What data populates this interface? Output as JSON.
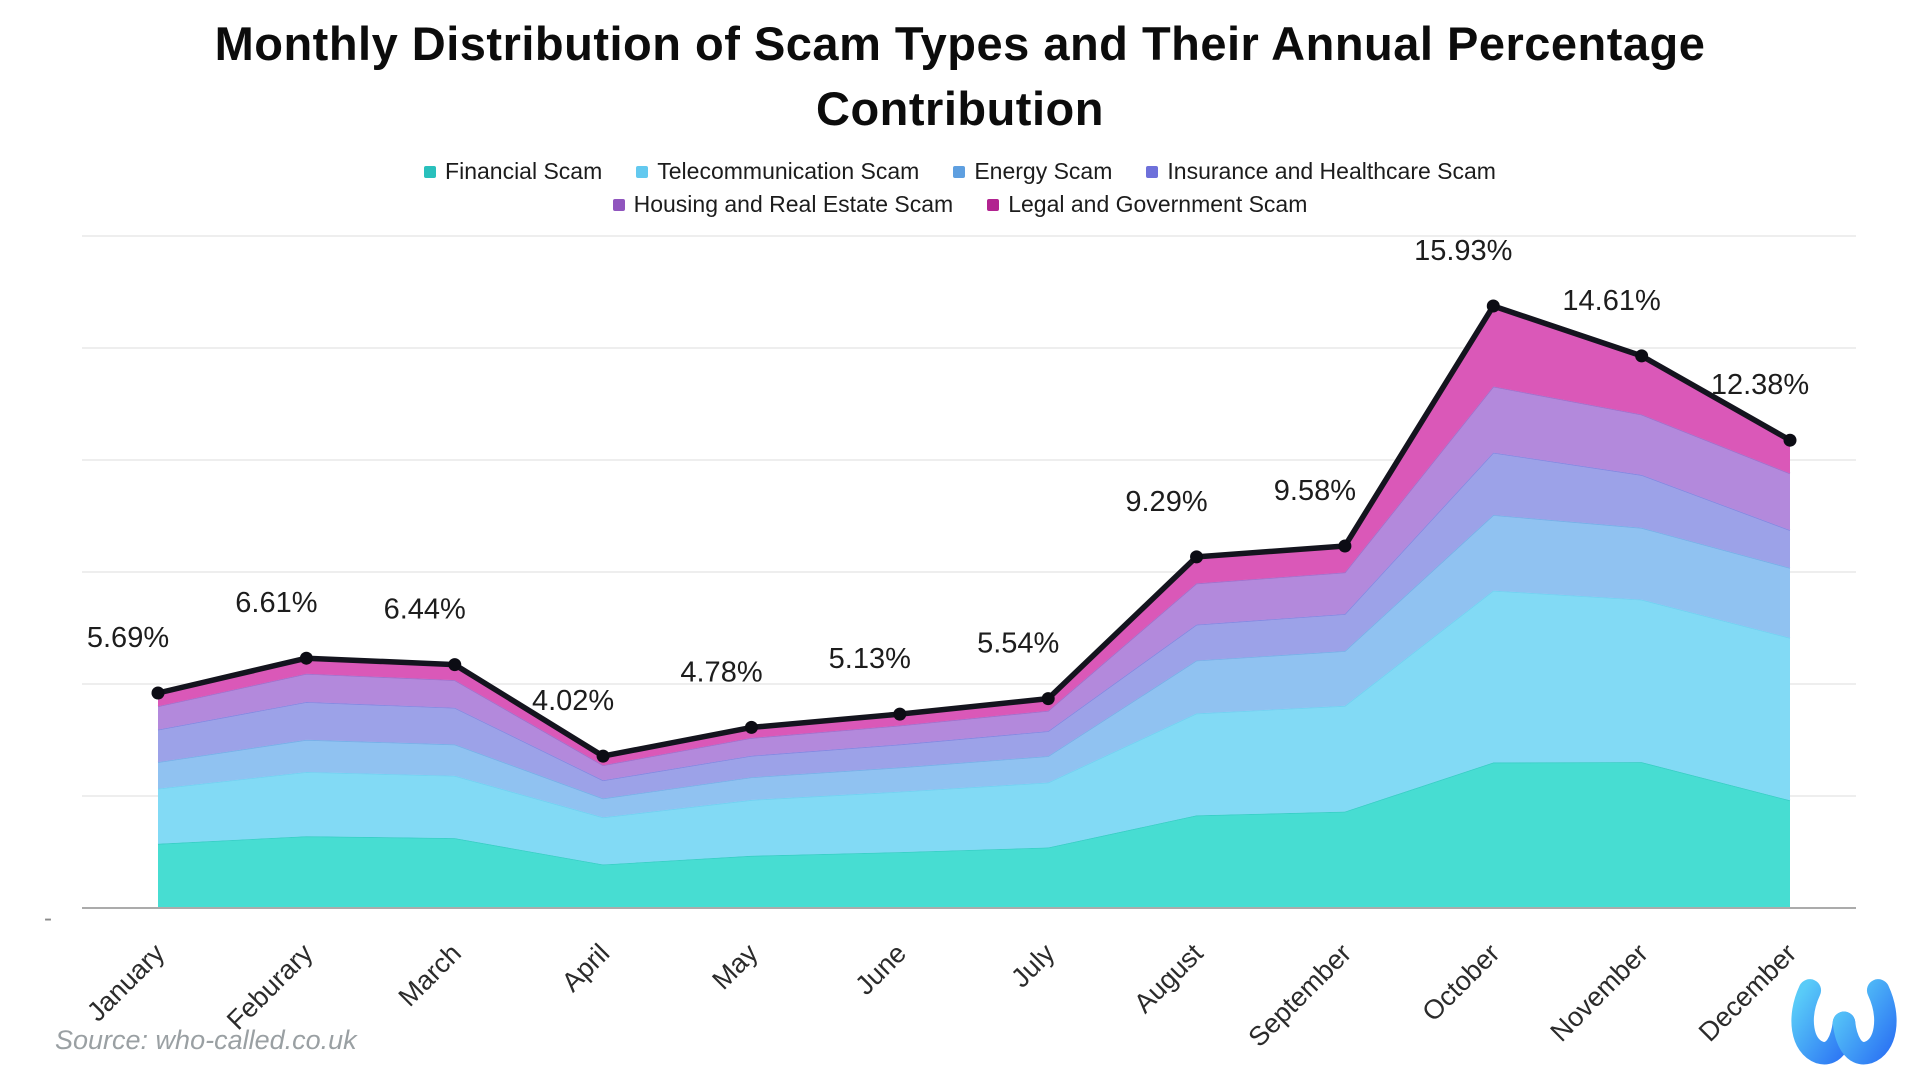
{
  "title": {
    "line1": "Monthly Distribution of Scam Types and Their Annual Percentage",
    "line2": "Contribution"
  },
  "source": "Source: who-called.co.uk",
  "y_axis_tick_dash": "-",
  "logo": {
    "label": "who-called logo",
    "gradient_start": "#56C9F8",
    "gradient_end": "#2E78F4"
  },
  "chart_data": {
    "type": "area",
    "stacked": true,
    "title": "Monthly Distribution of Scam Types and Their Annual Percentage Contribution",
    "categories": [
      "January",
      "Feburary",
      "March",
      "April",
      "May",
      "June",
      "July",
      "August",
      "September",
      "October",
      "November",
      "December"
    ],
    "series": [
      {
        "id": "financial-scam",
        "name": "Financial Scam",
        "swatch": "#29C0BC",
        "fill": "#47DDD2",
        "values": [
          1.7,
          1.9,
          1.85,
          1.15,
          1.38,
          1.48,
          1.6,
          2.45,
          2.55,
          3.85,
          3.86,
          2.85
        ]
      },
      {
        "id": "telecommunication-scam",
        "name": "Telecommunication Scam",
        "swatch": "#63C9EF",
        "fill": "#82DAF5",
        "values": [
          1.46,
          1.7,
          1.65,
          1.25,
          1.48,
          1.6,
          1.72,
          2.7,
          2.8,
          4.55,
          4.3,
          4.3
        ]
      },
      {
        "id": "energy-scam",
        "name": "Energy Scam",
        "swatch": "#5E9FE0",
        "fill": "#90C2F1",
        "values": [
          0.7,
          0.85,
          0.83,
          0.5,
          0.6,
          0.64,
          0.7,
          1.4,
          1.45,
          2.0,
          1.9,
          1.85
        ]
      },
      {
        "id": "insurance-and-healthcare-scam",
        "name": "Insurance and Healthcare Scam",
        "swatch": "#6E70DA",
        "fill": "#9CA2E8",
        "values": [
          0.86,
          1.0,
          0.97,
          0.48,
          0.57,
          0.61,
          0.66,
          0.95,
          0.98,
          1.65,
          1.4,
          1.0
        ]
      },
      {
        "id": "housing-and-real-estate-scam",
        "name": "Housing and Real Estate Scam",
        "swatch": "#9055BE",
        "fill": "#B389DC",
        "values": [
          0.62,
          0.75,
          0.73,
          0.4,
          0.47,
          0.5,
          0.54,
          1.09,
          1.1,
          1.75,
          1.6,
          1.5
        ]
      },
      {
        "id": "legal-and-government-scam",
        "name": "Legal and Government Scam",
        "swatch": "#B22390",
        "fill": "#DA58B8",
        "values": [
          0.35,
          0.41,
          0.41,
          0.24,
          0.28,
          0.3,
          0.32,
          0.7,
          0.7,
          2.13,
          1.55,
          0.88
        ]
      }
    ],
    "totals": [
      5.69,
      6.61,
      6.44,
      4.02,
      4.78,
      5.13,
      5.54,
      9.29,
      9.58,
      15.93,
      14.61,
      12.38
    ],
    "total_labels": [
      "5.69%",
      "6.61%",
      "6.44%",
      "4.02%",
      "4.78%",
      "5.13%",
      "5.54%",
      "9.29%",
      "9.58%",
      "15.93%",
      "14.61%",
      "12.38%"
    ],
    "total_line_color": "#14141E",
    "xlabel": "",
    "ylabel": "",
    "ylim": [
      0,
      17.8
    ],
    "gridline_interval_pct": 3,
    "grid": true,
    "legend_position": "top"
  }
}
